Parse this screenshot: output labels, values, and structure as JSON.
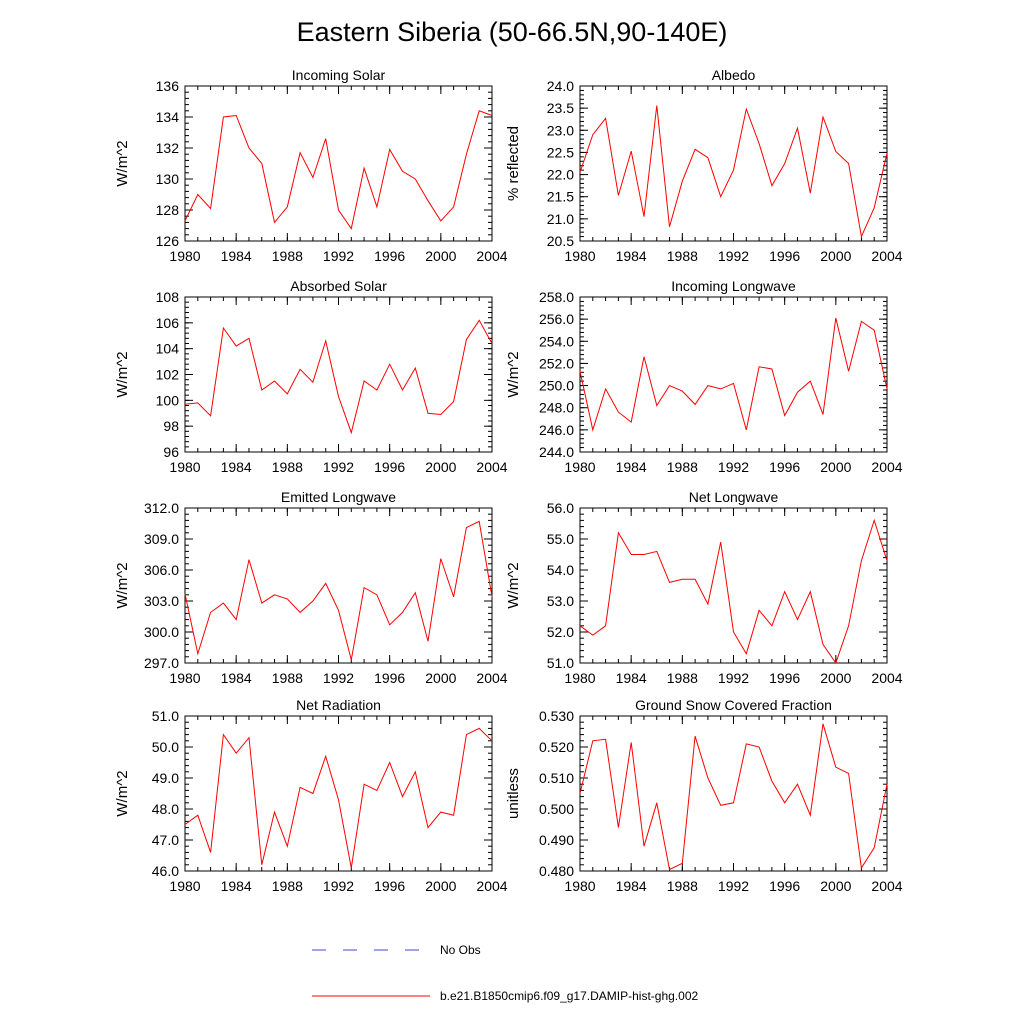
{
  "figure": {
    "title": "Eastern Siberia (50-66.5N,90-140E)"
  },
  "colors": {
    "series": "#ff0000",
    "obs": "#4444cc",
    "axis": "#000000"
  },
  "legend": {
    "position": "bottom-center",
    "entries": [
      {
        "label": "No Obs",
        "style": "dashed",
        "color": "#4444cc"
      },
      {
        "label": "b.e21.B1850cmip6.f09_g17.DAMIP-hist-ghg.002",
        "style": "solid",
        "color": "#ff0000"
      }
    ]
  },
  "chart_data": [
    {
      "type": "line",
      "title": "Incoming Solar",
      "ylabel": "W/m^2",
      "xlim": [
        1980,
        2004
      ],
      "ylim": [
        126,
        136
      ],
      "xticks": [
        "1980",
        "1984",
        "1988",
        "1992",
        "1996",
        "2000",
        "2004"
      ],
      "yticks": [
        "126",
        "128",
        "130",
        "132",
        "134",
        "136"
      ],
      "x": [
        1980,
        1981,
        1982,
        1983,
        1984,
        1985,
        1986,
        1987,
        1988,
        1989,
        1990,
        1991,
        1992,
        1993,
        1994,
        1995,
        1996,
        1997,
        1998,
        1999,
        2000,
        2001,
        2002,
        2003,
        2004
      ],
      "series": [
        {
          "values": [
            127.3,
            129.0,
            128.1,
            134.0,
            134.1,
            132.0,
            131.0,
            127.2,
            128.2,
            131.7,
            130.1,
            132.6,
            128.0,
            126.8,
            130.7,
            128.2,
            131.9,
            130.5,
            130.0,
            128.6,
            127.3,
            128.2,
            131.6,
            134.4,
            134.1
          ]
        }
      ]
    },
    {
      "type": "line",
      "title": "Albedo",
      "ylabel": "% reflected",
      "xlim": [
        1980,
        2004
      ],
      "ylim": [
        20.5,
        24.0
      ],
      "xticks": [
        "1980",
        "1984",
        "1988",
        "1992",
        "1996",
        "2000",
        "2004"
      ],
      "yticks": [
        "20.5",
        "21.0",
        "21.5",
        "22.0",
        "22.5",
        "23.0",
        "23.5",
        "24.0"
      ],
      "x": [
        1980,
        1981,
        1982,
        1983,
        1984,
        1985,
        1986,
        1987,
        1988,
        1989,
        1990,
        1991,
        1992,
        1993,
        1994,
        1995,
        1996,
        1997,
        1998,
        1999,
        2000,
        2001,
        2002,
        2003,
        2004
      ],
      "series": [
        {
          "values": [
            22.05,
            22.9,
            23.27,
            21.53,
            22.53,
            21.05,
            23.56,
            20.82,
            21.85,
            22.57,
            22.38,
            21.5,
            22.1,
            23.48,
            22.7,
            21.75,
            22.25,
            23.05,
            21.58,
            23.3,
            22.52,
            22.25,
            20.6,
            21.25,
            22.48
          ]
        }
      ]
    },
    {
      "type": "line",
      "title": "Absorbed Solar",
      "ylabel": "W/m^2",
      "xlim": [
        1980,
        2004
      ],
      "ylim": [
        96,
        108
      ],
      "xticks": [
        "1980",
        "1984",
        "1988",
        "1992",
        "1996",
        "2000",
        "2004"
      ],
      "yticks": [
        "96",
        "98",
        "100",
        "102",
        "104",
        "106",
        "108"
      ],
      "x": [
        1980,
        1981,
        1982,
        1983,
        1984,
        1985,
        1986,
        1987,
        1988,
        1989,
        1990,
        1991,
        1992,
        1993,
        1994,
        1995,
        1996,
        1997,
        1998,
        1999,
        2000,
        2001,
        2002,
        2003,
        2004
      ],
      "series": [
        {
          "values": [
            99.7,
            99.8,
            98.8,
            105.6,
            104.2,
            104.8,
            100.8,
            101.5,
            100.5,
            102.4,
            101.4,
            104.6,
            100.3,
            97.5,
            101.5,
            100.8,
            102.8,
            100.8,
            102.5,
            99.0,
            98.9,
            99.9,
            104.7,
            106.2,
            104.4
          ]
        }
      ]
    },
    {
      "type": "line",
      "title": "Incoming Longwave",
      "ylabel": "W/m^2",
      "xlim": [
        1980,
        2004
      ],
      "ylim": [
        244.0,
        258.0
      ],
      "xticks": [
        "1980",
        "1984",
        "1988",
        "1992",
        "1996",
        "2000",
        "2004"
      ],
      "yticks": [
        "244.0",
        "246.0",
        "248.0",
        "250.0",
        "252.0",
        "254.0",
        "256.0",
        "258.0"
      ],
      "x": [
        1980,
        1981,
        1982,
        1983,
        1984,
        1985,
        1986,
        1987,
        1988,
        1989,
        1990,
        1991,
        1992,
        1993,
        1994,
        1995,
        1996,
        1997,
        1998,
        1999,
        2000,
        2001,
        2002,
        2003,
        2004
      ],
      "series": [
        {
          "values": [
            251.3,
            246.0,
            249.7,
            247.6,
            246.7,
            252.6,
            248.2,
            250.0,
            249.5,
            248.3,
            250.0,
            249.7,
            250.2,
            246.0,
            251.7,
            251.5,
            247.3,
            249.4,
            250.4,
            247.4,
            256.1,
            251.3,
            255.8,
            255.0,
            249.7
          ]
        }
      ]
    },
    {
      "type": "line",
      "title": "Emitted Longwave",
      "ylabel": "W/m^2",
      "xlim": [
        1980,
        2004
      ],
      "ylim": [
        297.0,
        312.0
      ],
      "xticks": [
        "1980",
        "1984",
        "1988",
        "1992",
        "1996",
        "2000",
        "2004"
      ],
      "yticks": [
        "297.0",
        "300.0",
        "303.0",
        "306.0",
        "309.0",
        "312.0"
      ],
      "x": [
        1980,
        1981,
        1982,
        1983,
        1984,
        1985,
        1986,
        1987,
        1988,
        1989,
        1990,
        1991,
        1992,
        1993,
        1994,
        1995,
        1996,
        1997,
        1998,
        1999,
        2000,
        2001,
        2002,
        2003,
        2004
      ],
      "series": [
        {
          "values": [
            303.7,
            297.9,
            301.9,
            302.8,
            301.2,
            307.0,
            302.8,
            303.6,
            303.2,
            301.9,
            303.0,
            304.7,
            302.1,
            297.3,
            304.3,
            303.6,
            300.7,
            301.9,
            303.8,
            299.1,
            307.1,
            303.4,
            310.1,
            310.7,
            303.4
          ]
        }
      ]
    },
    {
      "type": "line",
      "title": "Net Longwave",
      "ylabel": "W/m^2",
      "xlim": [
        1980,
        2004
      ],
      "ylim": [
        51.0,
        56.0
      ],
      "xticks": [
        "1980",
        "1984",
        "1988",
        "1992",
        "1996",
        "2000",
        "2004"
      ],
      "yticks": [
        "51.0",
        "52.0",
        "53.0",
        "54.0",
        "55.0",
        "56.0"
      ],
      "x": [
        1980,
        1981,
        1982,
        1983,
        1984,
        1985,
        1986,
        1987,
        1988,
        1989,
        1990,
        1991,
        1992,
        1993,
        1994,
        1995,
        1996,
        1997,
        1998,
        1999,
        2000,
        2001,
        2002,
        2003,
        2004
      ],
      "series": [
        {
          "values": [
            52.2,
            51.9,
            52.2,
            55.2,
            54.5,
            54.5,
            54.6,
            53.6,
            53.7,
            53.7,
            52.9,
            54.9,
            52.0,
            51.3,
            52.7,
            52.2,
            53.3,
            52.4,
            53.3,
            51.6,
            51.0,
            52.2,
            54.3,
            55.6,
            54.3
          ]
        }
      ]
    },
    {
      "type": "line",
      "title": "Net Radiation",
      "ylabel": "W/m^2",
      "xlim": [
        1980,
        2004
      ],
      "ylim": [
        46.0,
        51.0
      ],
      "xticks": [
        "1980",
        "1984",
        "1988",
        "1992",
        "1996",
        "2000",
        "2004"
      ],
      "yticks": [
        "46.0",
        "47.0",
        "48.0",
        "49.0",
        "50.0",
        "51.0"
      ],
      "x": [
        1980,
        1981,
        1982,
        1983,
        1984,
        1985,
        1986,
        1987,
        1988,
        1989,
        1990,
        1991,
        1992,
        1993,
        1994,
        1995,
        1996,
        1997,
        1998,
        1999,
        2000,
        2001,
        2002,
        2003,
        2004
      ],
      "series": [
        {
          "values": [
            47.5,
            47.8,
            46.6,
            50.4,
            49.8,
            50.3,
            46.2,
            47.9,
            46.8,
            48.7,
            48.5,
            49.7,
            48.3,
            46.1,
            48.8,
            48.6,
            49.5,
            48.4,
            49.2,
            47.4,
            47.9,
            47.8,
            50.4,
            50.6,
            50.2
          ]
        }
      ]
    },
    {
      "type": "line",
      "title": "Ground Snow Covered Fraction",
      "ylabel": "unitless",
      "xlim": [
        1980,
        2004
      ],
      "ylim": [
        0.48,
        0.53
      ],
      "xticks": [
        "1980",
        "1984",
        "1988",
        "1992",
        "1996",
        "2000",
        "2004"
      ],
      "yticks": [
        "0.480",
        "0.490",
        "0.500",
        "0.510",
        "0.520",
        "0.530"
      ],
      "x": [
        1980,
        1981,
        1982,
        1983,
        1984,
        1985,
        1986,
        1987,
        1988,
        1989,
        1990,
        1991,
        1992,
        1993,
        1994,
        1995,
        1996,
        1997,
        1998,
        1999,
        2000,
        2001,
        2002,
        2003,
        2004
      ],
      "series": [
        {
          "values": [
            0.505,
            0.522,
            0.5225,
            0.494,
            0.5215,
            0.488,
            0.502,
            0.4805,
            0.4825,
            0.5235,
            0.51,
            0.5012,
            0.502,
            0.521,
            0.52,
            0.509,
            0.502,
            0.508,
            0.498,
            0.5275,
            0.5135,
            0.5115,
            0.481,
            0.4875,
            0.508
          ]
        }
      ]
    }
  ]
}
